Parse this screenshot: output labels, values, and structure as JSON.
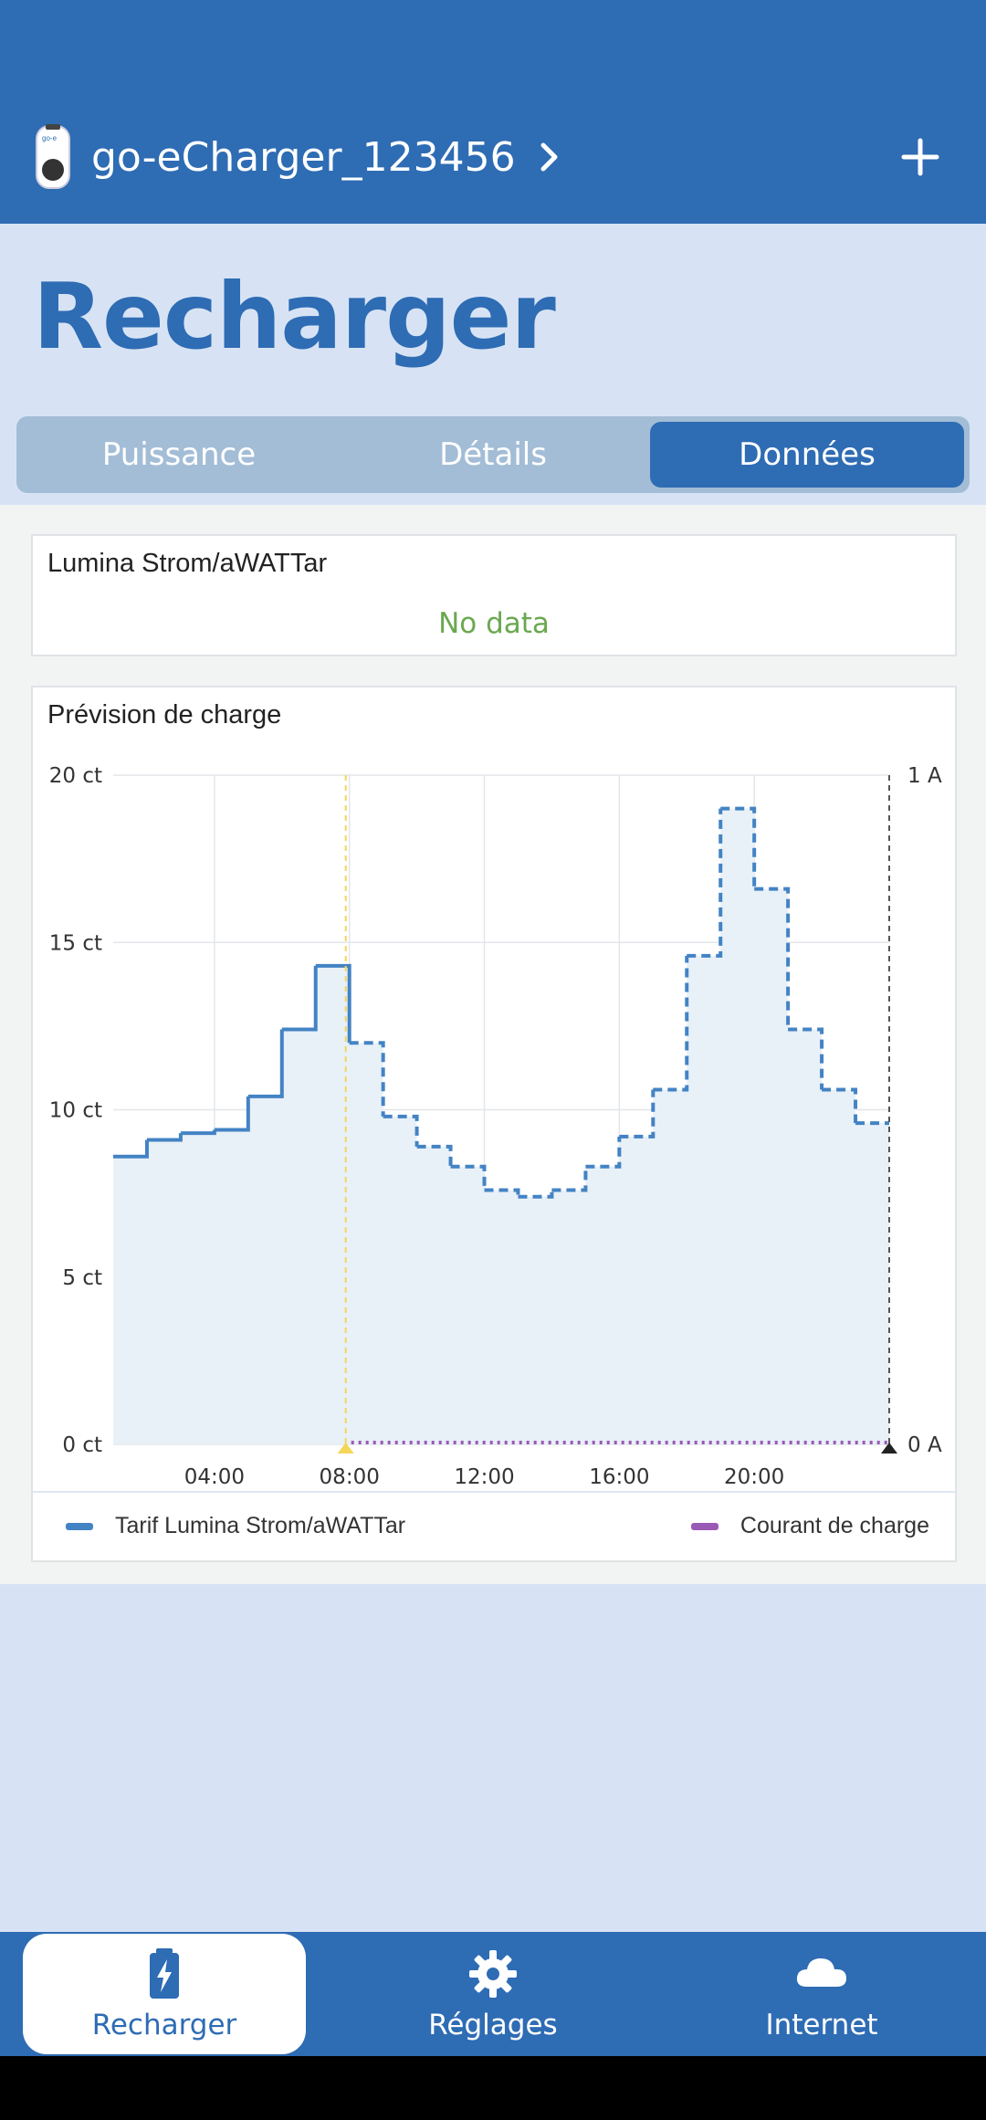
{
  "header": {
    "device_name": "go-eCharger_123456",
    "device_icon": "charger-device-icon",
    "add_icon": "plus-icon"
  },
  "page_title": "Recharger",
  "tabs": [
    {
      "label": "Puissance",
      "active": false
    },
    {
      "label": "Détails",
      "active": false
    },
    {
      "label": "Données",
      "active": true
    }
  ],
  "tariff_card": {
    "title": "Lumina Strom/aWATTar",
    "status": "No data"
  },
  "forecast_card": {
    "title": "Prévision de charge"
  },
  "chart_data": {
    "type": "line",
    "y_left": {
      "ticks": [
        "0 ct",
        "5 ct",
        "10 ct",
        "15 ct",
        "20 ct"
      ],
      "range": [
        0,
        20
      ],
      "unit": "ct"
    },
    "y_right": {
      "ticks": [
        "0 A",
        "1 A"
      ],
      "range": [
        0,
        1
      ],
      "unit": "A"
    },
    "x_ticks": [
      "04:00",
      "08:00",
      "12:00",
      "16:00",
      "20:00"
    ],
    "x_range_hours": [
      1,
      24
    ],
    "now_hour": 8,
    "series": [
      {
        "name": "Tarif Lumina Strom/aWATTar",
        "style": "step",
        "color": "#4383c4",
        "x_hours": [
          1,
          2,
          3,
          4,
          5,
          6,
          7,
          8,
          9,
          10,
          11,
          12,
          13,
          14,
          15,
          16,
          17,
          18,
          19,
          20,
          21,
          22,
          23
        ],
        "values": [
          8.6,
          9.1,
          9.3,
          9.4,
          10.4,
          12.4,
          14.3,
          12.0,
          9.8,
          8.9,
          8.3,
          7.6,
          7.4,
          7.6,
          8.3,
          9.2,
          10.6,
          14.6,
          19.0,
          16.6,
          12.4,
          10.6,
          9.6
        ],
        "solid_until_hour": 8
      },
      {
        "name": "Courant de charge",
        "style": "dotted",
        "color": "#9b59b6",
        "x_hours": [
          8,
          24
        ],
        "values": [
          0,
          0
        ]
      }
    ],
    "grid": true,
    "legend_position": "bottom"
  },
  "bottom_nav": [
    {
      "label": "Recharger",
      "icon": "charging-battery-icon",
      "active": true
    },
    {
      "label": "Réglages",
      "icon": "gear-icon",
      "active": false
    },
    {
      "label": "Internet",
      "icon": "cloud-icon",
      "active": false
    }
  ],
  "colors": {
    "primary": "#2e6cb4",
    "background": "#d7e3f4",
    "tab_track": "#a3bdd6",
    "status_green": "#6aa84f"
  }
}
